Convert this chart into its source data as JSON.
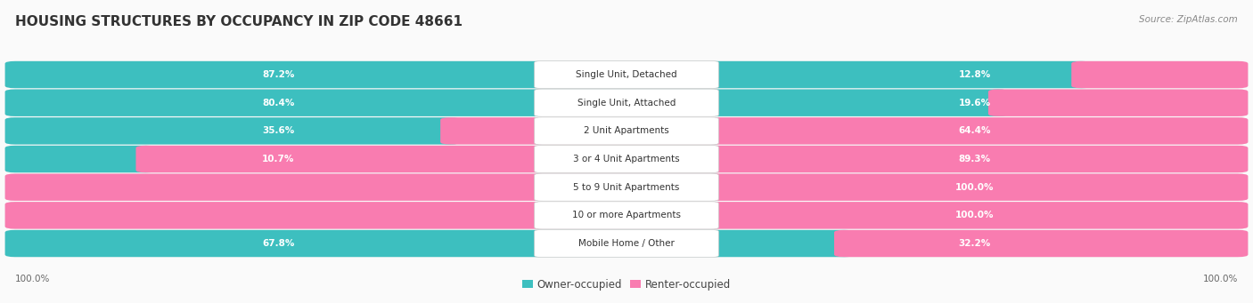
{
  "title": "HOUSING STRUCTURES BY OCCUPANCY IN ZIP CODE 48661",
  "source": "Source: ZipAtlas.com",
  "categories": [
    "Single Unit, Detached",
    "Single Unit, Attached",
    "2 Unit Apartments",
    "3 or 4 Unit Apartments",
    "5 to 9 Unit Apartments",
    "10 or more Apartments",
    "Mobile Home / Other"
  ],
  "owner_pct": [
    87.2,
    80.4,
    35.6,
    10.7,
    0.0,
    0.0,
    67.8
  ],
  "renter_pct": [
    12.8,
    19.6,
    64.4,
    89.3,
    100.0,
    100.0,
    32.2
  ],
  "owner_color": "#3DBFBF",
  "renter_color": "#F97CB0",
  "bg_color": "#FAFAFA",
  "row_bg_color": "#EBEBEB",
  "title_fontsize": 11,
  "label_fontsize": 7.5,
  "pct_fontsize": 7.5,
  "legend_fontsize": 8.5,
  "source_fontsize": 7.5
}
